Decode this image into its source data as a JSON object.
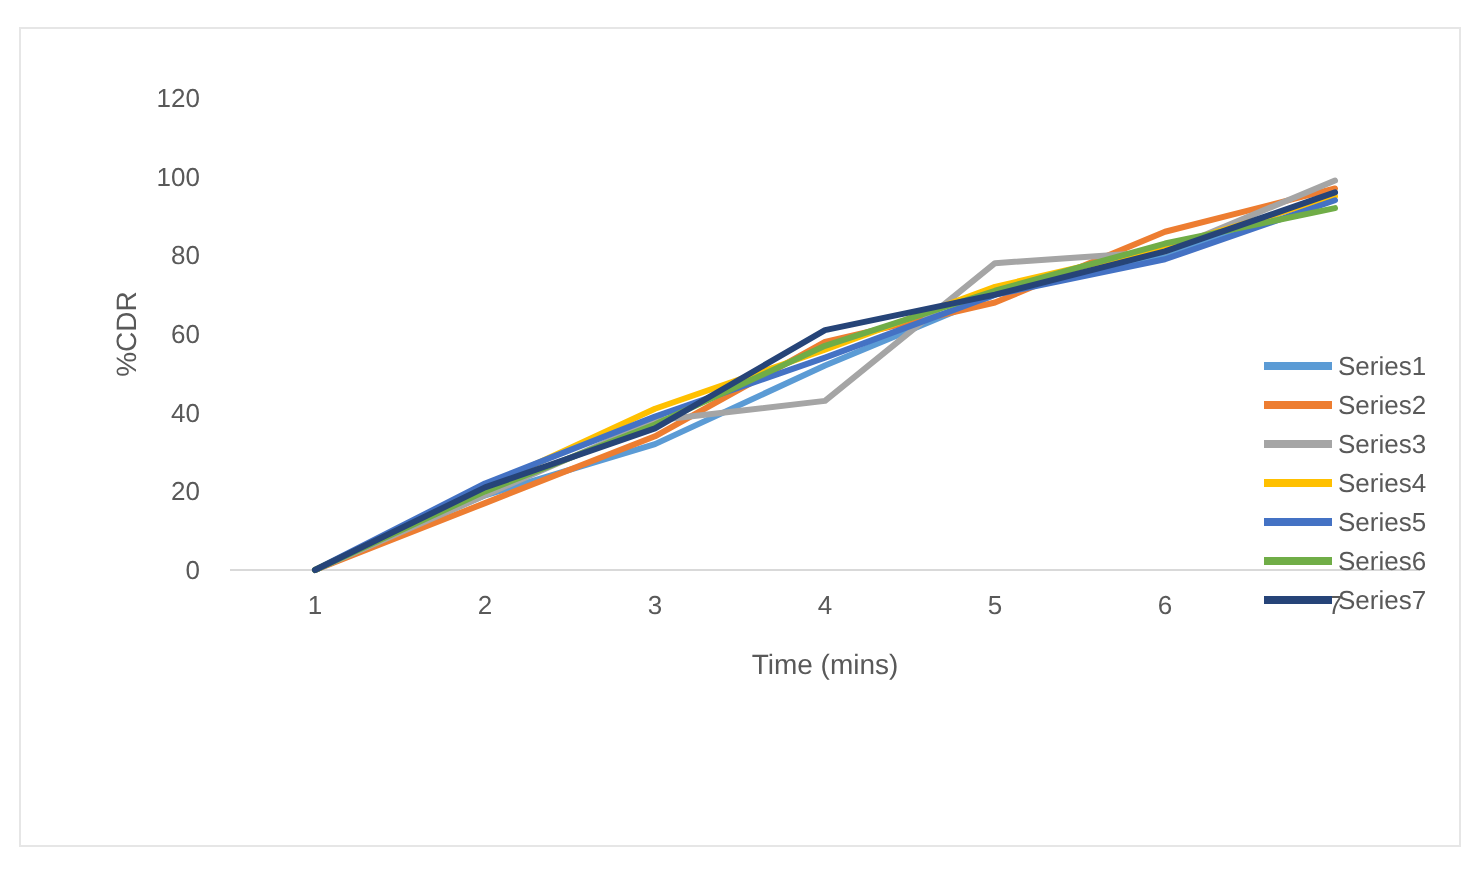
{
  "chart_data": {
    "type": "line",
    "xlabel": "Time (mins)",
    "ylabel": "%CDR",
    "categories": [
      "1",
      "2",
      "3",
      "4",
      "5",
      "6",
      "7"
    ],
    "ylim": [
      0,
      120
    ],
    "yticks": [
      0,
      20,
      40,
      60,
      80,
      100,
      120
    ],
    "grid": false,
    "legend": "right",
    "marker": "none",
    "line_style": "solid",
    "series": [
      {
        "name": "Series1",
        "color": "#5b9bd5",
        "values": [
          0,
          19,
          32,
          52,
          70,
          80,
          96
        ]
      },
      {
        "name": "Series2",
        "color": "#ed7d31",
        "values": [
          0,
          17,
          34,
          58,
          68,
          86,
          97
        ]
      },
      {
        "name": "Series3",
        "color": "#a5a5a5",
        "values": [
          0,
          19,
          38,
          43,
          78,
          81,
          99
        ]
      },
      {
        "name": "Series4",
        "color": "#ffc000",
        "values": [
          0,
          21,
          41,
          56,
          72,
          82,
          95
        ]
      },
      {
        "name": "Series5",
        "color": "#4472c4",
        "values": [
          0,
          22,
          39,
          54,
          70,
          79,
          94
        ]
      },
      {
        "name": "Series6",
        "color": "#70ad47",
        "values": [
          0,
          20,
          37,
          57,
          71,
          83,
          92
        ]
      },
      {
        "name": "Series7",
        "color": "#264478",
        "values": [
          0,
          21,
          36,
          61,
          70,
          81,
          96
        ]
      }
    ]
  }
}
